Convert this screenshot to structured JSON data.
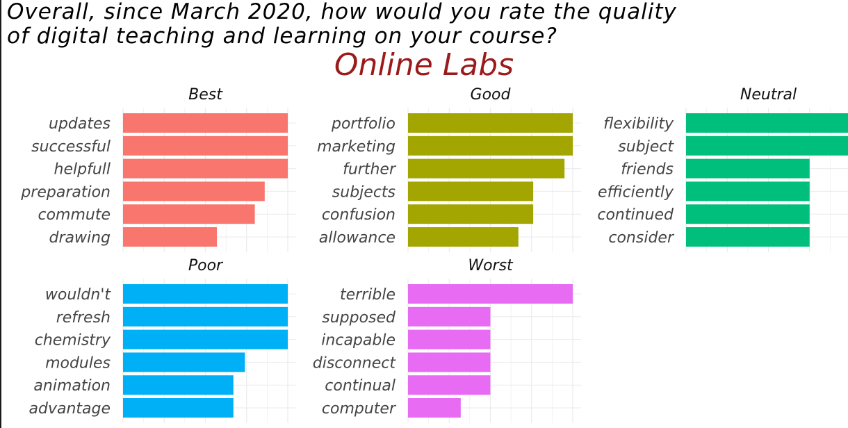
{
  "title": "Overall, since March 2020, how would you rate the quality\nof digital teaching and learning on your course?",
  "subtitle": "Online Labs",
  "colors": {
    "Best": "#f8766d",
    "Good": "#a3a500",
    "Neutral": "#00bf7d",
    "Poor": "#00b0f6",
    "Worst": "#e76bf3",
    "grid": "#ebebeb",
    "subtitle": "#9b1b1b"
  },
  "chart_data": {
    "type": "bar",
    "orientation": "horizontal",
    "facet_order": [
      "Best",
      "Good",
      "Neutral",
      "Poor",
      "Worst"
    ],
    "xlim": [
      0,
      1
    ],
    "grid": true,
    "legend": "none",
    "panels": [
      {
        "name": "Best",
        "categories": [
          "updates",
          "successful",
          "helpfull",
          "preparation",
          "commute",
          "drawing"
        ],
        "values": [
          1.0,
          1.0,
          1.0,
          0.86,
          0.8,
          0.57
        ]
      },
      {
        "name": "Good",
        "categories": [
          "portfolio",
          "marketing",
          "further",
          "subjects",
          "confusion",
          "allowance"
        ],
        "values": [
          1.0,
          1.0,
          0.95,
          0.76,
          0.76,
          0.67
        ]
      },
      {
        "name": "Neutral",
        "categories": [
          "flexibility",
          "subject",
          "friends",
          "efficiently",
          "continued",
          "consider"
        ],
        "values": [
          1.0,
          1.0,
          0.75,
          0.75,
          0.75,
          0.75
        ]
      },
      {
        "name": "Poor",
        "categories": [
          "wouldn't",
          "refresh",
          "chemistry",
          "modules",
          "animation",
          "advantage"
        ],
        "values": [
          1.0,
          1.0,
          1.0,
          0.74,
          0.67,
          0.67
        ]
      },
      {
        "name": "Worst",
        "categories": [
          "terrible",
          "supposed",
          "incapable",
          "disconnect",
          "continual",
          "computer"
        ],
        "values": [
          1.0,
          0.5,
          0.5,
          0.5,
          0.5,
          0.32
        ]
      }
    ]
  }
}
